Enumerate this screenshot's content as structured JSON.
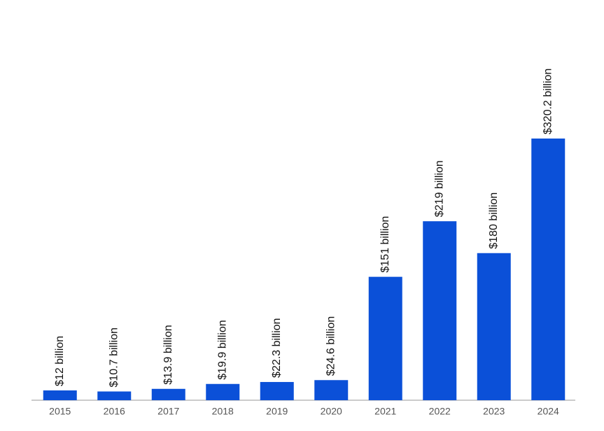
{
  "chart_data": {
    "type": "bar",
    "categories": [
      "2015",
      "2016",
      "2017",
      "2018",
      "2019",
      "2020",
      "2021",
      "2022",
      "2023",
      "2024"
    ],
    "values": [
      12,
      10.7,
      13.9,
      19.9,
      22.3,
      24.6,
      151,
      219,
      180,
      320.2
    ],
    "value_labels": [
      "$12 billion",
      "$10.7 billion",
      "$13.9 billion",
      "$19.9 billion",
      "$22.3 billion",
      "$24.6 billion",
      "$151 billion",
      "$219 billion",
      "$180 billion",
      "$320.2 billion"
    ],
    "color": "#0b50d8"
  }
}
